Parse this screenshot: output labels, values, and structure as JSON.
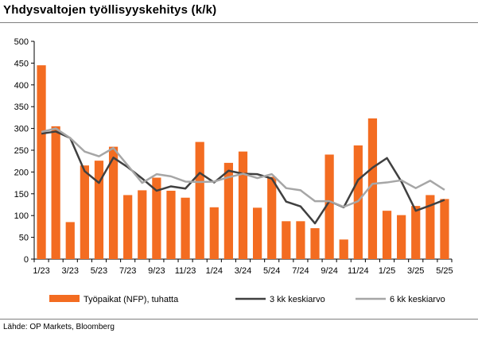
{
  "header": {
    "title": "Yhdysvaltojen työllisyyskehitys (k/k)"
  },
  "footer": {
    "source": "Lähde: OP Markets, Bloomberg"
  },
  "chart_data": {
    "type": "bar",
    "title": "Yhdysvaltojen työllisyyskehitys (k/k)",
    "ylim": [
      0,
      500
    ],
    "yticks": [
      0,
      50,
      100,
      150,
      200,
      250,
      300,
      350,
      400,
      450,
      500
    ],
    "grid": false,
    "legend_position": "bottom",
    "categories": [
      "1/23",
      "2/23",
      "3/23",
      "4/23",
      "5/23",
      "6/23",
      "7/23",
      "8/23",
      "9/23",
      "10/23",
      "11/23",
      "12/23",
      "1/24",
      "2/24",
      "3/24",
      "4/24",
      "5/24",
      "6/24",
      "7/24",
      "8/24",
      "9/24",
      "10/24",
      "11/24",
      "12/24",
      "1/25",
      "2/25",
      "3/25",
      "4/25",
      "5/25"
    ],
    "x_tick_labels": [
      "1/23",
      "",
      "3/23",
      "",
      "5/23",
      "",
      "7/23",
      "",
      "9/23",
      "",
      "11/23",
      "",
      "1/24",
      "",
      "3/24",
      "",
      "5/24",
      "",
      "7/24",
      "",
      "9/24",
      "",
      "11/24",
      "",
      "1/25",
      "",
      "3/25",
      "",
      "5/25"
    ],
    "series": [
      {
        "name": "Työpaikat (NFP), tuhatta",
        "kind": "bar",
        "color": "#f36c21",
        "values": [
          445,
          305,
          85,
          215,
          226,
          258,
          147,
          158,
          187,
          157,
          141,
          269,
          119,
          221,
          247,
          118,
          189,
          87,
          87,
          71,
          240,
          45,
          261,
          323,
          111,
          101,
          122,
          147,
          138
        ]
      },
      {
        "name": "3 kk keskiarvo",
        "kind": "line",
        "color": "#404040",
        "values": [
          288,
          293,
          278,
          202,
          175,
          233,
          211,
          185,
          157,
          167,
          162,
          198,
          176,
          203,
          196,
          195,
          185,
          132,
          121,
          82,
          133,
          119,
          182,
          210,
          232,
          178,
          111,
          123,
          136
        ]
      },
      {
        "name": "6 kk keskiarvo",
        "kind": "line",
        "color": "#a6a6a6",
        "values": [
          292,
          300,
          278,
          247,
          236,
          255,
          215,
          175,
          195,
          190,
          178,
          177,
          178,
          188,
          196,
          186,
          195,
          163,
          158,
          133,
          133,
          120,
          133,
          173,
          176,
          181,
          163,
          180,
          159
        ]
      }
    ]
  }
}
